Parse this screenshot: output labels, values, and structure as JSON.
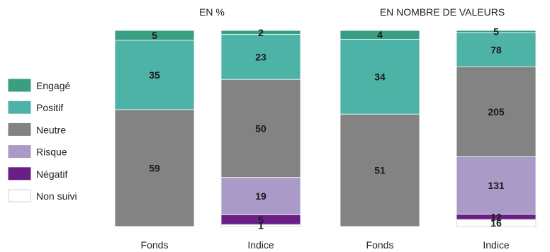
{
  "legend": {
    "entries": [
      {
        "name": "Engagé",
        "color": "#3a9e82"
      },
      {
        "name": "Positif",
        "color": "#4db3a6"
      },
      {
        "name": "Neutre",
        "color": "#838383"
      },
      {
        "name": "Risque",
        "color": "#aa9ac8"
      },
      {
        "name": "Négatif",
        "color": "#6a1f86"
      },
      {
        "name": "Non suivi",
        "color": "#ffffff"
      }
    ]
  },
  "chart_data": [
    {
      "type": "bar",
      "stacked": true,
      "title": "EN %",
      "categories": [
        "Fonds",
        "Indice"
      ],
      "series": [
        {
          "name": "Engagé",
          "values": [
            5,
            2
          ]
        },
        {
          "name": "Positif",
          "values": [
            35,
            23
          ]
        },
        {
          "name": "Neutre",
          "values": [
            59,
            50
          ]
        },
        {
          "name": "Risque",
          "values": [
            0,
            19
          ]
        },
        {
          "name": "Négatif",
          "values": [
            0,
            5
          ]
        },
        {
          "name": "Non suivi",
          "values": [
            0,
            1
          ]
        }
      ]
    },
    {
      "type": "bar",
      "stacked": true,
      "title": "EN NOMBRE DE VALEURS",
      "categories": [
        "Fonds",
        "Indice"
      ],
      "series": [
        {
          "name": "Engagé",
          "values": [
            4,
            5
          ]
        },
        {
          "name": "Positif",
          "values": [
            34,
            78
          ]
        },
        {
          "name": "Neutre",
          "values": [
            51,
            205
          ]
        },
        {
          "name": "Risque",
          "values": [
            0,
            131
          ]
        },
        {
          "name": "Négatif",
          "values": [
            0,
            12
          ]
        },
        {
          "name": "Non suivi",
          "values": [
            0,
            16
          ]
        }
      ]
    }
  ]
}
